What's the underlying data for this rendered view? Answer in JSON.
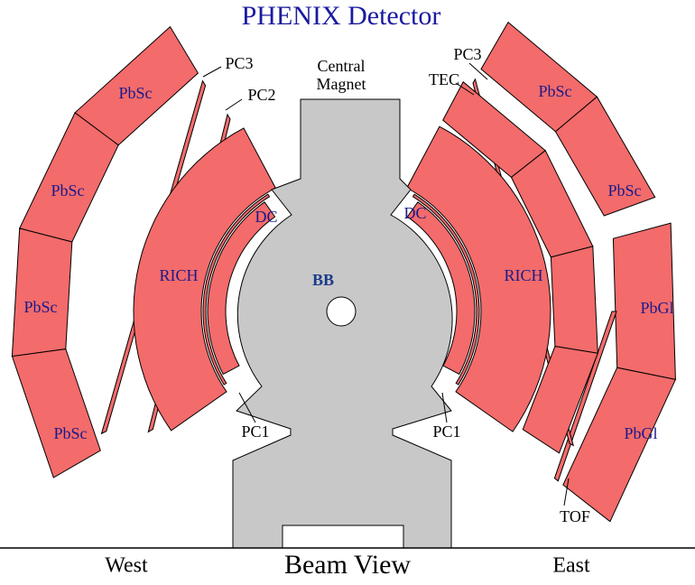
{
  "title": "PHENIX Detector",
  "magnet": {
    "lines": [
      "Central",
      "Magnet"
    ]
  },
  "bb": "BB",
  "west": {
    "pbsc": [
      "PbSc",
      "PbSc",
      "PbSc",
      "PbSc"
    ],
    "rich": "RICH",
    "dc": "DC",
    "pc1": "PC1",
    "pc2": "PC2",
    "pc3": "PC3"
  },
  "east": {
    "pbsc": [
      "PbSc",
      "PbSc"
    ],
    "pbgl": [
      "PbGl",
      "PbGl"
    ],
    "rich": "RICH",
    "dc": "DC",
    "pc1": "PC1",
    "pc3": "PC3",
    "tec": "TEC",
    "tof": "TOF"
  },
  "footer": {
    "west": "West",
    "center": "Beam View",
    "east": "East"
  }
}
